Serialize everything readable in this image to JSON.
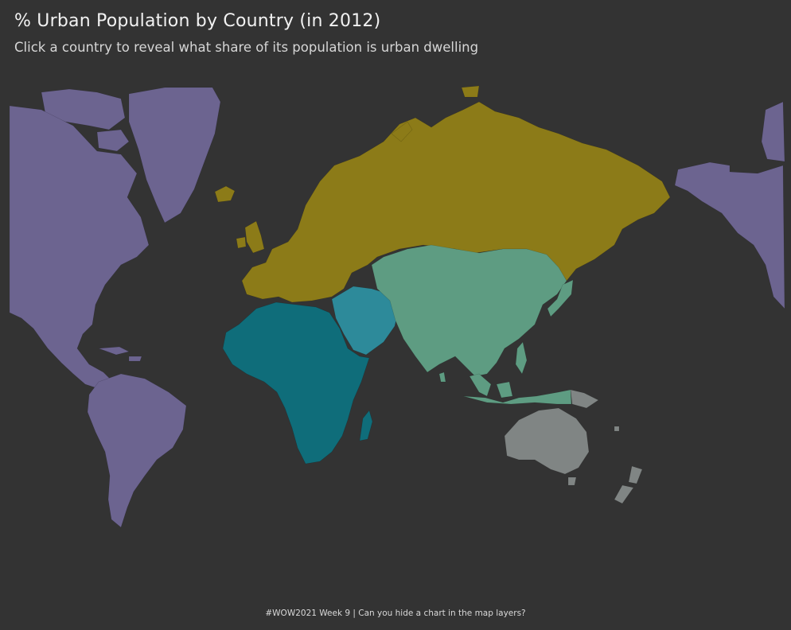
{
  "header": {
    "title": "% Urban Population by Country (in 2012)",
    "subtitle": "Click a country to reveal what share of its population is urban dwelling"
  },
  "map": {
    "regions": [
      {
        "name": "Americas",
        "color": "#6c6490"
      },
      {
        "name": "Europe & Russia",
        "color": "#8c7b18"
      },
      {
        "name": "Africa",
        "color": "#0f6d7a"
      },
      {
        "name": "Middle East",
        "color": "#2d8a9a"
      },
      {
        "name": "Asia",
        "color": "#5e9c82"
      },
      {
        "name": "Oceania",
        "color": "#808584"
      }
    ],
    "background": "#333333"
  },
  "footer": {
    "text": "#WOW2021 Week 9 | Can you hide a chart in the map layers?"
  }
}
